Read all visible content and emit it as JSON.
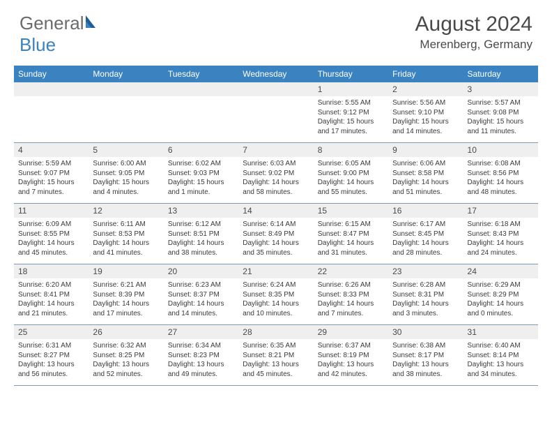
{
  "brand": {
    "part1": "General",
    "part2": "Blue"
  },
  "title": "August 2024",
  "location": "Merenberg, Germany",
  "colors": {
    "header_bg": "#3b83c0",
    "header_text": "#ffffff",
    "daynum_bg": "#efefef",
    "text": "#3a3a3a",
    "border": "#7a9bb8",
    "brand_gray": "#6b6b6b",
    "brand_blue": "#3b83c0"
  },
  "fonts": {
    "title_size": 30,
    "location_size": 17,
    "header_size": 12,
    "body_size": 10
  },
  "day_names": [
    "Sunday",
    "Monday",
    "Tuesday",
    "Wednesday",
    "Thursday",
    "Friday",
    "Saturday"
  ],
  "weeks": [
    [
      null,
      null,
      null,
      null,
      {
        "n": "1",
        "sr": "5:55 AM",
        "ss": "9:12 PM",
        "dl": "15 hours and 17 minutes."
      },
      {
        "n": "2",
        "sr": "5:56 AM",
        "ss": "9:10 PM",
        "dl": "15 hours and 14 minutes."
      },
      {
        "n": "3",
        "sr": "5:57 AM",
        "ss": "9:08 PM",
        "dl": "15 hours and 11 minutes."
      }
    ],
    [
      {
        "n": "4",
        "sr": "5:59 AM",
        "ss": "9:07 PM",
        "dl": "15 hours and 7 minutes."
      },
      {
        "n": "5",
        "sr": "6:00 AM",
        "ss": "9:05 PM",
        "dl": "15 hours and 4 minutes."
      },
      {
        "n": "6",
        "sr": "6:02 AM",
        "ss": "9:03 PM",
        "dl": "15 hours and 1 minute."
      },
      {
        "n": "7",
        "sr": "6:03 AM",
        "ss": "9:02 PM",
        "dl": "14 hours and 58 minutes."
      },
      {
        "n": "8",
        "sr": "6:05 AM",
        "ss": "9:00 PM",
        "dl": "14 hours and 55 minutes."
      },
      {
        "n": "9",
        "sr": "6:06 AM",
        "ss": "8:58 PM",
        "dl": "14 hours and 51 minutes."
      },
      {
        "n": "10",
        "sr": "6:08 AM",
        "ss": "8:56 PM",
        "dl": "14 hours and 48 minutes."
      }
    ],
    [
      {
        "n": "11",
        "sr": "6:09 AM",
        "ss": "8:55 PM",
        "dl": "14 hours and 45 minutes."
      },
      {
        "n": "12",
        "sr": "6:11 AM",
        "ss": "8:53 PM",
        "dl": "14 hours and 41 minutes."
      },
      {
        "n": "13",
        "sr": "6:12 AM",
        "ss": "8:51 PM",
        "dl": "14 hours and 38 minutes."
      },
      {
        "n": "14",
        "sr": "6:14 AM",
        "ss": "8:49 PM",
        "dl": "14 hours and 35 minutes."
      },
      {
        "n": "15",
        "sr": "6:15 AM",
        "ss": "8:47 PM",
        "dl": "14 hours and 31 minutes."
      },
      {
        "n": "16",
        "sr": "6:17 AM",
        "ss": "8:45 PM",
        "dl": "14 hours and 28 minutes."
      },
      {
        "n": "17",
        "sr": "6:18 AM",
        "ss": "8:43 PM",
        "dl": "14 hours and 24 minutes."
      }
    ],
    [
      {
        "n": "18",
        "sr": "6:20 AM",
        "ss": "8:41 PM",
        "dl": "14 hours and 21 minutes."
      },
      {
        "n": "19",
        "sr": "6:21 AM",
        "ss": "8:39 PM",
        "dl": "14 hours and 17 minutes."
      },
      {
        "n": "20",
        "sr": "6:23 AM",
        "ss": "8:37 PM",
        "dl": "14 hours and 14 minutes."
      },
      {
        "n": "21",
        "sr": "6:24 AM",
        "ss": "8:35 PM",
        "dl": "14 hours and 10 minutes."
      },
      {
        "n": "22",
        "sr": "6:26 AM",
        "ss": "8:33 PM",
        "dl": "14 hours and 7 minutes."
      },
      {
        "n": "23",
        "sr": "6:28 AM",
        "ss": "8:31 PM",
        "dl": "14 hours and 3 minutes."
      },
      {
        "n": "24",
        "sr": "6:29 AM",
        "ss": "8:29 PM",
        "dl": "14 hours and 0 minutes."
      }
    ],
    [
      {
        "n": "25",
        "sr": "6:31 AM",
        "ss": "8:27 PM",
        "dl": "13 hours and 56 minutes."
      },
      {
        "n": "26",
        "sr": "6:32 AM",
        "ss": "8:25 PM",
        "dl": "13 hours and 52 minutes."
      },
      {
        "n": "27",
        "sr": "6:34 AM",
        "ss": "8:23 PM",
        "dl": "13 hours and 49 minutes."
      },
      {
        "n": "28",
        "sr": "6:35 AM",
        "ss": "8:21 PM",
        "dl": "13 hours and 45 minutes."
      },
      {
        "n": "29",
        "sr": "6:37 AM",
        "ss": "8:19 PM",
        "dl": "13 hours and 42 minutes."
      },
      {
        "n": "30",
        "sr": "6:38 AM",
        "ss": "8:17 PM",
        "dl": "13 hours and 38 minutes."
      },
      {
        "n": "31",
        "sr": "6:40 AM",
        "ss": "8:14 PM",
        "dl": "13 hours and 34 minutes."
      }
    ]
  ],
  "labels": {
    "sunrise": "Sunrise:",
    "sunset": "Sunset:",
    "daylight": "Daylight:"
  }
}
